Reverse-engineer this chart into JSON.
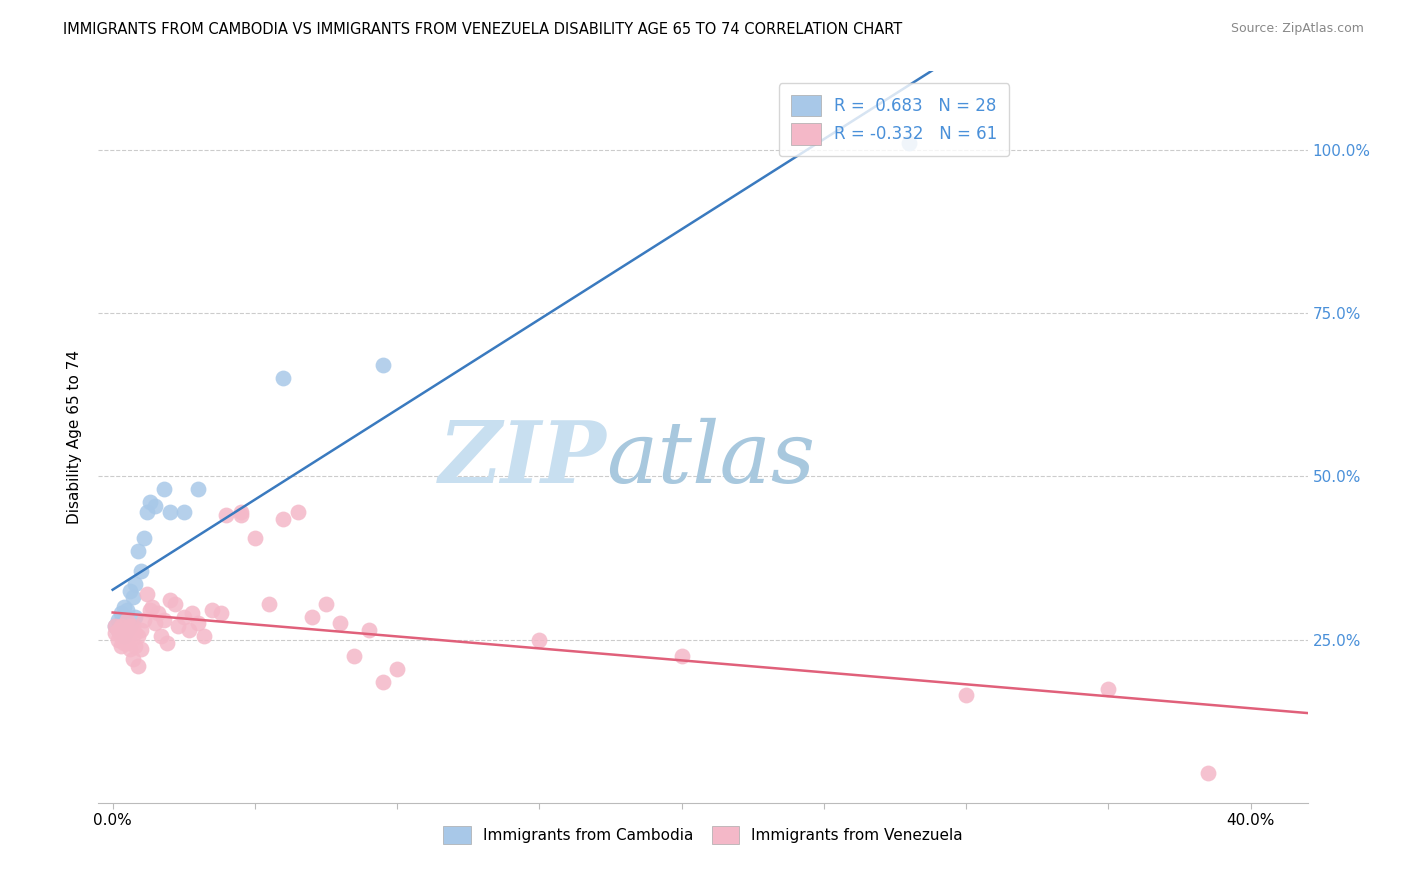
{
  "title": "IMMIGRANTS FROM CAMBODIA VS IMMIGRANTS FROM VENEZUELA DISABILITY AGE 65 TO 74 CORRELATION CHART",
  "source": "Source: ZipAtlas.com",
  "ylabel": "Disability Age 65 to 74",
  "xaxis_label_blue": "Immigrants from Cambodia",
  "xaxis_label_pink": "Immigrants from Venezuela",
  "r_blue": 0.683,
  "n_blue": 28,
  "r_pink": -0.332,
  "n_pink": 61,
  "blue_color": "#a8c8e8",
  "pink_color": "#f4b8c8",
  "blue_line_color": "#3a7abf",
  "pink_line_color": "#e0607a",
  "right_tick_color": "#4a90d9",
  "watermark_zip_color": "#c8dff0",
  "watermark_atlas_color": "#a8c8de",
  "blue_scatter_x": [
    0.001,
    0.002,
    0.002,
    0.003,
    0.003,
    0.003,
    0.004,
    0.004,
    0.005,
    0.005,
    0.006,
    0.006,
    0.007,
    0.008,
    0.008,
    0.009,
    0.01,
    0.011,
    0.012,
    0.013,
    0.015,
    0.018,
    0.02,
    0.025,
    0.06,
    0.095,
    0.03,
    0.28
  ],
  "blue_scatter_y": [
    0.27,
    0.265,
    0.28,
    0.26,
    0.275,
    0.29,
    0.255,
    0.3,
    0.265,
    0.295,
    0.27,
    0.325,
    0.315,
    0.285,
    0.335,
    0.385,
    0.355,
    0.405,
    0.445,
    0.46,
    0.455,
    0.48,
    0.445,
    0.445,
    0.65,
    0.67,
    0.48,
    1.01
  ],
  "pink_scatter_x": [
    0.001,
    0.001,
    0.002,
    0.002,
    0.003,
    0.003,
    0.003,
    0.004,
    0.004,
    0.005,
    0.005,
    0.005,
    0.006,
    0.006,
    0.006,
    0.007,
    0.007,
    0.008,
    0.008,
    0.009,
    0.009,
    0.01,
    0.01,
    0.011,
    0.012,
    0.013,
    0.014,
    0.015,
    0.016,
    0.017,
    0.018,
    0.019,
    0.02,
    0.022,
    0.023,
    0.025,
    0.027,
    0.028,
    0.03,
    0.032,
    0.035,
    0.038,
    0.04,
    0.045,
    0.045,
    0.05,
    0.055,
    0.06,
    0.065,
    0.07,
    0.075,
    0.08,
    0.085,
    0.09,
    0.095,
    0.1,
    0.15,
    0.2,
    0.3,
    0.35,
    0.385
  ],
  "pink_scatter_y": [
    0.27,
    0.26,
    0.25,
    0.265,
    0.255,
    0.27,
    0.24,
    0.265,
    0.245,
    0.255,
    0.28,
    0.245,
    0.26,
    0.235,
    0.27,
    0.27,
    0.22,
    0.26,
    0.24,
    0.255,
    0.21,
    0.265,
    0.235,
    0.28,
    0.32,
    0.295,
    0.3,
    0.275,
    0.29,
    0.255,
    0.28,
    0.245,
    0.31,
    0.305,
    0.27,
    0.285,
    0.265,
    0.29,
    0.275,
    0.255,
    0.295,
    0.29,
    0.44,
    0.445,
    0.44,
    0.405,
    0.305,
    0.435,
    0.445,
    0.285,
    0.305,
    0.275,
    0.225,
    0.265,
    0.185,
    0.205,
    0.25,
    0.225,
    0.165,
    0.175,
    0.045
  ],
  "xlim": [
    -0.005,
    0.42
  ],
  "ylim": [
    0.0,
    1.12
  ],
  "y_ticks": [
    0.25,
    0.5,
    0.75,
    1.0
  ],
  "y_tick_labels_right": [
    "25.0%",
    "50.0%",
    "75.0%",
    "100.0%"
  ],
  "x_ticks": [
    0.0,
    0.05,
    0.1,
    0.15,
    0.2,
    0.25,
    0.3,
    0.35,
    0.4
  ],
  "x_tick_labels": [
    "0.0%",
    "",
    "",
    "",
    "",
    "",
    "",
    "",
    "40.0%"
  ]
}
